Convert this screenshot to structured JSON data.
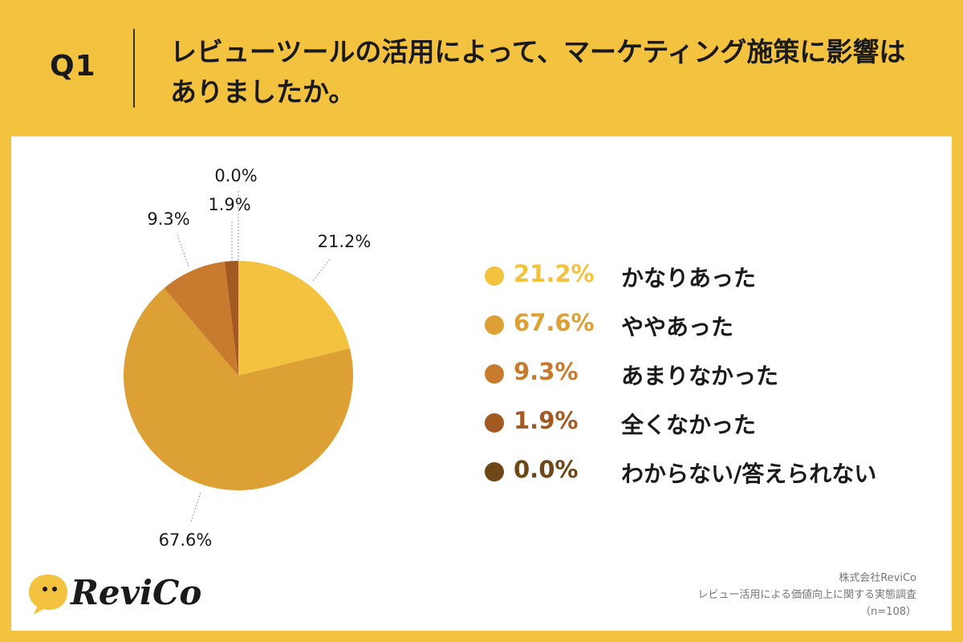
{
  "header": {
    "q_label": "Q1",
    "question": "レビューツールの活用によって、マーケティング施策に影響はありましたか。"
  },
  "chart_data": {
    "type": "pie",
    "categories": [
      "かなりあった",
      "ややあった",
      "あまりなかった",
      "全くなかった",
      "わからない/答えられない"
    ],
    "values": [
      21.2,
      67.6,
      9.3,
      1.9,
      0.0
    ],
    "labels": [
      "21.2%",
      "67.6%",
      "9.3%",
      "1.9%",
      "0.0%"
    ],
    "colors": [
      "#F3C340",
      "#DDA035",
      "#C87A2E",
      "#A35A22",
      "#6E4716"
    ],
    "legend_value_colors": [
      "#F3C340",
      "#DDA035",
      "#C87A2E",
      "#A35A22",
      "#6E4716"
    ],
    "start": "12 o'clock",
    "direction": "clockwise",
    "legend_position": "right"
  },
  "footer": {
    "company": "株式会社ReviCo",
    "survey": "レビュー活用による価値向上に関する実態調査",
    "sample": "（n=108）"
  },
  "logo": {
    "text": "ReviCo",
    "color": "#F3C340"
  }
}
